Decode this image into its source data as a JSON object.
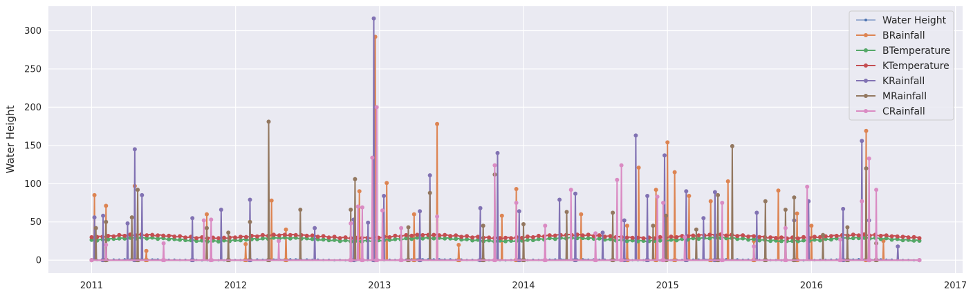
{
  "chart_data": {
    "type": "line",
    "title": "",
    "xlabel": "",
    "ylabel": "Water Height",
    "xlim": [
      2010.7,
      2017.05
    ],
    "ylim": [
      -17,
      332
    ],
    "x_ticks": [
      "2011",
      "2012",
      "2013",
      "2014",
      "2015",
      "2016",
      "2017"
    ],
    "y_ticks": [
      "0",
      "50",
      "100",
      "150",
      "200",
      "250",
      "300"
    ],
    "grid": true,
    "legend": "top-right",
    "series": [
      {
        "name": "Water Height",
        "color": "#4c72b0",
        "baseline": 0.5,
        "noise": 0.6,
        "peaks": []
      },
      {
        "name": "BRainfall",
        "color": "#dd8452",
        "baseline": 0,
        "noise": 0,
        "peaks": [
          [
            2011.02,
            85
          ],
          [
            2011.1,
            71
          ],
          [
            2011.3,
            97
          ],
          [
            2011.38,
            12
          ],
          [
            2011.8,
            60
          ],
          [
            2012.07,
            21
          ],
          [
            2012.25,
            78
          ],
          [
            2012.35,
            40
          ],
          [
            2012.86,
            90
          ],
          [
            2012.97,
            292
          ],
          [
            2013.05,
            101
          ],
          [
            2013.24,
            60
          ],
          [
            2013.4,
            178
          ],
          [
            2013.55,
            20
          ],
          [
            2013.85,
            58
          ],
          [
            2013.95,
            93
          ],
          [
            2014.4,
            60
          ],
          [
            2014.72,
            45
          ],
          [
            2014.8,
            121
          ],
          [
            2014.92,
            92
          ],
          [
            2015.0,
            154
          ],
          [
            2015.05,
            115
          ],
          [
            2015.15,
            84
          ],
          [
            2015.3,
            77
          ],
          [
            2015.42,
            103
          ],
          [
            2015.6,
            25
          ],
          [
            2015.77,
            91
          ],
          [
            2015.9,
            61
          ],
          [
            2016.0,
            45
          ],
          [
            2016.38,
            169
          ],
          [
            2016.5,
            25
          ]
        ]
      },
      {
        "name": "BTemperature",
        "color": "#55a868",
        "baseline": 27,
        "noise": 2,
        "peaks": []
      },
      {
        "name": "KTemperature",
        "color": "#c44e52",
        "baseline": 31,
        "noise": 2,
        "peaks": []
      },
      {
        "name": "KRainfall",
        "color": "#8172b3",
        "baseline": 0,
        "noise": 0,
        "peaks": [
          [
            2011.02,
            56
          ],
          [
            2011.08,
            58
          ],
          [
            2011.25,
            48
          ],
          [
            2011.3,
            145
          ],
          [
            2011.35,
            85
          ],
          [
            2011.7,
            55
          ],
          [
            2011.9,
            66
          ],
          [
            2012.1,
            79
          ],
          [
            2012.55,
            42
          ],
          [
            2012.82,
            53
          ],
          [
            2012.92,
            49
          ],
          [
            2012.96,
            316
          ],
          [
            2013.03,
            84
          ],
          [
            2013.28,
            64
          ],
          [
            2013.35,
            111
          ],
          [
            2013.7,
            68
          ],
          [
            2013.82,
            140
          ],
          [
            2013.97,
            64
          ],
          [
            2014.25,
            79
          ],
          [
            2014.36,
            87
          ],
          [
            2014.55,
            36
          ],
          [
            2014.7,
            52
          ],
          [
            2014.78,
            163
          ],
          [
            2014.86,
            84
          ],
          [
            2014.98,
            137
          ],
          [
            2015.13,
            90
          ],
          [
            2015.25,
            55
          ],
          [
            2015.33,
            89
          ],
          [
            2015.62,
            62
          ],
          [
            2015.88,
            52
          ],
          [
            2015.98,
            77
          ],
          [
            2016.22,
            67
          ],
          [
            2016.35,
            156
          ],
          [
            2016.4,
            52
          ],
          [
            2016.6,
            18
          ]
        ]
      },
      {
        "name": "MRainfall",
        "color": "#937860",
        "baseline": 0,
        "noise": 0,
        "peaks": [
          [
            2011.03,
            42
          ],
          [
            2011.1,
            50
          ],
          [
            2011.28,
            56
          ],
          [
            2011.32,
            92
          ],
          [
            2011.8,
            42
          ],
          [
            2011.95,
            36
          ],
          [
            2012.1,
            50
          ],
          [
            2012.23,
            181
          ],
          [
            2012.45,
            66
          ],
          [
            2012.8,
            66
          ],
          [
            2012.83,
            106
          ],
          [
            2013.2,
            43
          ],
          [
            2013.35,
            88
          ],
          [
            2013.72,
            45
          ],
          [
            2013.8,
            112
          ],
          [
            2014.0,
            47
          ],
          [
            2014.3,
            63
          ],
          [
            2014.62,
            62
          ],
          [
            2014.9,
            45
          ],
          [
            2014.99,
            58
          ],
          [
            2015.2,
            40
          ],
          [
            2015.35,
            85
          ],
          [
            2015.45,
            149
          ],
          [
            2015.68,
            77
          ],
          [
            2015.82,
            66
          ],
          [
            2015.88,
            82
          ],
          [
            2016.08,
            33
          ],
          [
            2016.25,
            43
          ],
          [
            2016.38,
            120
          ],
          [
            2016.45,
            22
          ]
        ]
      },
      {
        "name": "CRainfall",
        "color": "#da8bc3",
        "baseline": 0,
        "noise": 0,
        "peaks": [
          [
            2011.1,
            20
          ],
          [
            2011.5,
            22
          ],
          [
            2011.78,
            52
          ],
          [
            2011.83,
            53
          ],
          [
            2012.3,
            25
          ],
          [
            2012.8,
            48
          ],
          [
            2012.85,
            70
          ],
          [
            2012.88,
            69
          ],
          [
            2012.95,
            134
          ],
          [
            2012.98,
            200
          ],
          [
            2013.02,
            65
          ],
          [
            2013.15,
            42
          ],
          [
            2013.4,
            57
          ],
          [
            2013.8,
            124
          ],
          [
            2013.95,
            75
          ],
          [
            2014.15,
            45
          ],
          [
            2014.33,
            92
          ],
          [
            2014.5,
            35
          ],
          [
            2014.65,
            105
          ],
          [
            2014.68,
            124
          ],
          [
            2014.93,
            83
          ],
          [
            2014.97,
            75
          ],
          [
            2015.12,
            30
          ],
          [
            2015.38,
            75
          ],
          [
            2015.6,
            18
          ],
          [
            2015.82,
            42
          ],
          [
            2015.97,
            96
          ],
          [
            2016.2,
            27
          ],
          [
            2016.35,
            77
          ],
          [
            2016.4,
            133
          ],
          [
            2016.45,
            92
          ]
        ]
      }
    ]
  }
}
